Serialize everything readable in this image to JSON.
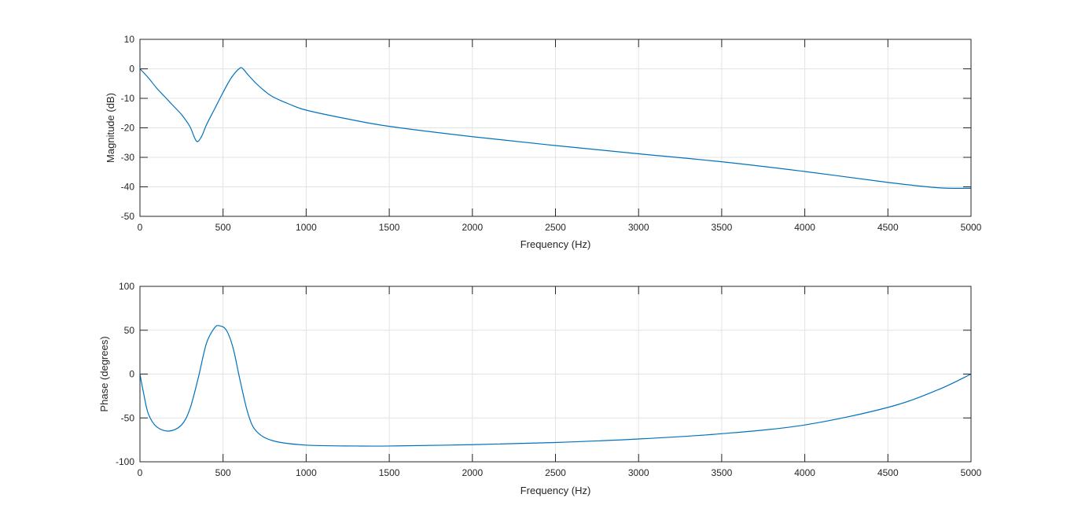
{
  "chart_data": [
    {
      "type": "line",
      "title": "",
      "xlabel": "Frequency (Hz)",
      "ylabel": "Magnitude (dB)",
      "xlim": [
        0,
        5000
      ],
      "ylim": [
        -50,
        10
      ],
      "xticks": [
        0,
        500,
        1000,
        1500,
        2000,
        2500,
        3000,
        3500,
        4000,
        4500,
        5000
      ],
      "yticks": [
        -50,
        -40,
        -30,
        -20,
        -10,
        0,
        10
      ],
      "grid": true,
      "color": "#0072BD",
      "x": [
        0,
        50,
        100,
        150,
        200,
        250,
        300,
        340,
        370,
        400,
        450,
        500,
        550,
        600,
        620,
        650,
        700,
        750,
        800,
        900,
        1000,
        1250,
        1500,
        2000,
        2500,
        3000,
        3500,
        4000,
        4500,
        4800,
        5000
      ],
      "y": [
        0,
        -3,
        -6.5,
        -9.5,
        -12.5,
        -15.5,
        -19.5,
        -24.5,
        -23,
        -19,
        -13.5,
        -8,
        -3,
        0.2,
        0,
        -2,
        -5,
        -7.5,
        -9.5,
        -12,
        -14,
        -17,
        -19.5,
        -23,
        -26,
        -28.8,
        -31.5,
        -34.8,
        -38.5,
        -40.3,
        -40.5
      ]
    },
    {
      "type": "line",
      "title": "",
      "xlabel": "Frequency (Hz)",
      "ylabel": "Phase (degrees)",
      "xlim": [
        0,
        5000
      ],
      "ylim": [
        -100,
        100
      ],
      "xticks": [
        0,
        500,
        1000,
        1500,
        2000,
        2500,
        3000,
        3500,
        4000,
        4500,
        5000
      ],
      "yticks": [
        -100,
        -50,
        0,
        50,
        100
      ],
      "grid": true,
      "color": "#0072BD",
      "x": [
        0,
        20,
        50,
        100,
        175,
        250,
        300,
        350,
        400,
        450,
        480,
        520,
        560,
        600,
        650,
        700,
        800,
        1000,
        1300,
        1500,
        2000,
        2500,
        3000,
        3500,
        4000,
        4500,
        4800,
        5000
      ],
      "y": [
        0,
        -20,
        -45,
        -60,
        -65,
        -58,
        -40,
        -5,
        35,
        53,
        55,
        50,
        30,
        -5,
        -45,
        -65,
        -76,
        -81,
        -82,
        -82,
        -80.5,
        -78,
        -74,
        -68,
        -58,
        -38,
        -18,
        0
      ]
    }
  ]
}
